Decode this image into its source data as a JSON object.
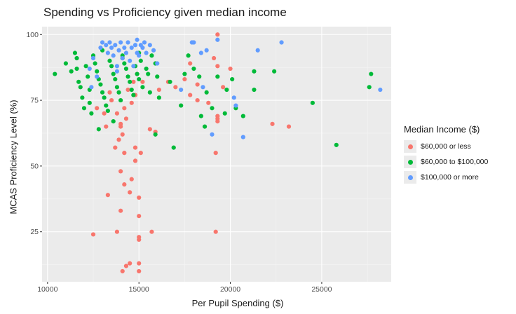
{
  "chart_data": {
    "type": "scatter",
    "title": "Spending vs Proficiency given median income",
    "xlabel": "Per Pupil Spending ($)",
    "ylabel": "MCAS Proficiency Level (%)",
    "xlim": [
      9700,
      28800
    ],
    "ylim": [
      6,
      103
    ],
    "xticks": [
      10000,
      15000,
      20000,
      25000
    ],
    "yticks": [
      25,
      50,
      75,
      100
    ],
    "grid": true,
    "legend_title": "Median Income ($)",
    "legend_position": "right",
    "series": [
      {
        "name": "$60,000 or less",
        "color": "#F8766D",
        "points": [
          [
            12500,
            24
          ],
          [
            13300,
            39
          ],
          [
            13800,
            25
          ],
          [
            14000,
            33
          ],
          [
            14100,
            10
          ],
          [
            14300,
            12
          ],
          [
            14500,
            13
          ],
          [
            14200,
            43
          ],
          [
            14000,
            48
          ],
          [
            14200,
            55
          ],
          [
            13700,
            57
          ],
          [
            13900,
            60
          ],
          [
            14100,
            62
          ],
          [
            14000,
            65
          ],
          [
            14300,
            68
          ],
          [
            13800,
            70
          ],
          [
            14200,
            72
          ],
          [
            14600,
            74
          ],
          [
            14800,
            77
          ],
          [
            13500,
            75
          ],
          [
            14500,
            40
          ],
          [
            15000,
            38
          ],
          [
            15000,
            31
          ],
          [
            15000,
            23
          ],
          [
            15000,
            22
          ],
          [
            15000,
            13
          ],
          [
            15100,
            55
          ],
          [
            14800,
            52
          ],
          [
            14800,
            57
          ],
          [
            15700,
            25
          ],
          [
            15000,
            10
          ],
          [
            14600,
            45
          ],
          [
            13200,
            65
          ],
          [
            12700,
            72
          ],
          [
            13100,
            70
          ],
          [
            15600,
            64
          ],
          [
            15900,
            63
          ],
          [
            16100,
            79
          ],
          [
            16600,
            82
          ],
          [
            17000,
            80
          ],
          [
            17500,
            83
          ],
          [
            17800,
            77
          ],
          [
            17800,
            89
          ],
          [
            18200,
            75
          ],
          [
            18200,
            81
          ],
          [
            18800,
            74
          ],
          [
            19200,
            55
          ],
          [
            19200,
            25
          ],
          [
            19300,
            67
          ],
          [
            19300,
            68
          ],
          [
            19300,
            69
          ],
          [
            19300,
            100
          ],
          [
            19300,
            88
          ],
          [
            19100,
            91
          ],
          [
            19600,
            80
          ],
          [
            20000,
            87
          ],
          [
            22300,
            66
          ],
          [
            23200,
            65
          ],
          [
            14700,
            82
          ],
          [
            13400,
            78
          ],
          [
            14900,
            85
          ],
          [
            14400,
            79
          ],
          [
            15200,
            82
          ],
          [
            14000,
            66
          ]
        ]
      },
      {
        "name": "$60,000 to $100,000",
        "color": "#00BA38",
        "points": [
          [
            10400,
            85
          ],
          [
            11000,
            89
          ],
          [
            11300,
            86
          ],
          [
            11500,
            93
          ],
          [
            11600,
            91
          ],
          [
            11600,
            87
          ],
          [
            11700,
            82
          ],
          [
            11800,
            80
          ],
          [
            11900,
            76
          ],
          [
            12000,
            72
          ],
          [
            12100,
            88
          ],
          [
            12200,
            84
          ],
          [
            12300,
            79
          ],
          [
            12300,
            74
          ],
          [
            12400,
            70
          ],
          [
            12500,
            92
          ],
          [
            12600,
            89
          ],
          [
            12700,
            86
          ],
          [
            12800,
            83
          ],
          [
            12900,
            81
          ],
          [
            13000,
            78
          ],
          [
            13100,
            76
          ],
          [
            13200,
            73
          ],
          [
            13300,
            71
          ],
          [
            13400,
            90
          ],
          [
            13500,
            88
          ],
          [
            13600,
            85
          ],
          [
            13700,
            83
          ],
          [
            13800,
            80
          ],
          [
            13900,
            78
          ],
          [
            14000,
            75
          ],
          [
            14100,
            92
          ],
          [
            14200,
            89
          ],
          [
            14300,
            87
          ],
          [
            14400,
            84
          ],
          [
            14500,
            82
          ],
          [
            14600,
            79
          ],
          [
            14700,
            77
          ],
          [
            14800,
            88
          ],
          [
            14900,
            85
          ],
          [
            15000,
            83
          ],
          [
            15100,
            90
          ],
          [
            15200,
            80
          ],
          [
            15400,
            87
          ],
          [
            15500,
            85
          ],
          [
            15600,
            78
          ],
          [
            15700,
            92
          ],
          [
            15900,
            89
          ],
          [
            16000,
            84
          ],
          [
            16100,
            76
          ],
          [
            16700,
            82
          ],
          [
            16900,
            57
          ],
          [
            17300,
            73
          ],
          [
            17500,
            85
          ],
          [
            17700,
            92
          ],
          [
            18000,
            87
          ],
          [
            18300,
            84
          ],
          [
            18400,
            69
          ],
          [
            18600,
            65
          ],
          [
            18700,
            78
          ],
          [
            19000,
            72
          ],
          [
            19300,
            84
          ],
          [
            19700,
            70
          ],
          [
            19800,
            79
          ],
          [
            20100,
            83
          ],
          [
            20300,
            72
          ],
          [
            20700,
            69
          ],
          [
            21300,
            79
          ],
          [
            21300,
            86
          ],
          [
            22400,
            86
          ],
          [
            24500,
            74
          ],
          [
            25800,
            58
          ],
          [
            27700,
            85
          ],
          [
            27600,
            80
          ],
          [
            12800,
            64
          ],
          [
            13600,
            67
          ],
          [
            15900,
            62
          ],
          [
            14100,
            91
          ],
          [
            13000,
            94
          ],
          [
            15000,
            93
          ]
        ]
      },
      {
        "name": "$100,000 or more",
        "color": "#619CFF",
        "points": [
          [
            12300,
            87
          ],
          [
            12400,
            80
          ],
          [
            12500,
            91
          ],
          [
            12900,
            95
          ],
          [
            13000,
            97
          ],
          [
            13200,
            96
          ],
          [
            13300,
            93
          ],
          [
            13400,
            97
          ],
          [
            13500,
            95
          ],
          [
            13600,
            92
          ],
          [
            13700,
            96
          ],
          [
            13800,
            88
          ],
          [
            13900,
            94
          ],
          [
            14000,
            97
          ],
          [
            14100,
            91
          ],
          [
            14200,
            95
          ],
          [
            14300,
            93
          ],
          [
            14400,
            97
          ],
          [
            14500,
            90
          ],
          [
            14600,
            95
          ],
          [
            14700,
            88
          ],
          [
            14800,
            96
          ],
          [
            14900,
            93
          ],
          [
            15000,
            92
          ],
          [
            15100,
            96
          ],
          [
            15200,
            95
          ],
          [
            15300,
            97
          ],
          [
            15400,
            93
          ],
          [
            15600,
            96
          ],
          [
            15800,
            94
          ],
          [
            16000,
            89
          ],
          [
            17300,
            79
          ],
          [
            17900,
            97
          ],
          [
            18000,
            97
          ],
          [
            18400,
            93
          ],
          [
            18500,
            80
          ],
          [
            18700,
            94
          ],
          [
            19000,
            62
          ],
          [
            19300,
            98
          ],
          [
            20200,
            76
          ],
          [
            20300,
            73
          ],
          [
            20700,
            61
          ],
          [
            21500,
            94
          ],
          [
            22800,
            97
          ],
          [
            28200,
            79
          ],
          [
            13800,
            86
          ],
          [
            14900,
            98
          ],
          [
            12700,
            84
          ]
        ]
      }
    ]
  }
}
